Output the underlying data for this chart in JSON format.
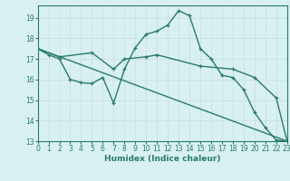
{
  "xlabel": "Humidex (Indice chaleur)",
  "bg_color": "#d8f0f0",
  "grid_color": "#c8dede",
  "line_color": "#2a7a6a",
  "x_min": 0,
  "x_max": 23,
  "y_min": 13,
  "y_max": 19.6,
  "yticks": [
    13,
    14,
    15,
    16,
    17,
    18,
    19
  ],
  "xticks": [
    0,
    1,
    2,
    3,
    4,
    5,
    6,
    7,
    8,
    9,
    10,
    11,
    12,
    13,
    14,
    15,
    16,
    17,
    18,
    19,
    20,
    21,
    22,
    23
  ],
  "series1_x": [
    0,
    1,
    2,
    3,
    4,
    5,
    6,
    7,
    8,
    9,
    10,
    11,
    12,
    13,
    14,
    15,
    16,
    17,
    18,
    19,
    20,
    21,
    22,
    23
  ],
  "series1_y": [
    17.5,
    17.2,
    17.0,
    16.0,
    15.85,
    15.8,
    16.1,
    14.85,
    16.5,
    17.55,
    18.2,
    18.35,
    18.65,
    19.35,
    19.1,
    17.5,
    17.0,
    16.2,
    16.1,
    15.5,
    14.4,
    13.65,
    13.05,
    13.0
  ],
  "series2_x": [
    0,
    2,
    5,
    7,
    8,
    10,
    11,
    15,
    18,
    20,
    22,
    23
  ],
  "series2_y": [
    17.5,
    17.1,
    17.3,
    16.5,
    17.0,
    17.1,
    17.2,
    16.65,
    16.5,
    16.1,
    15.1,
    13.0
  ],
  "series3_x": [
    0,
    23
  ],
  "series3_y": [
    17.5,
    13.0
  ],
  "marker_size": 3.5,
  "line_width": 1.0
}
